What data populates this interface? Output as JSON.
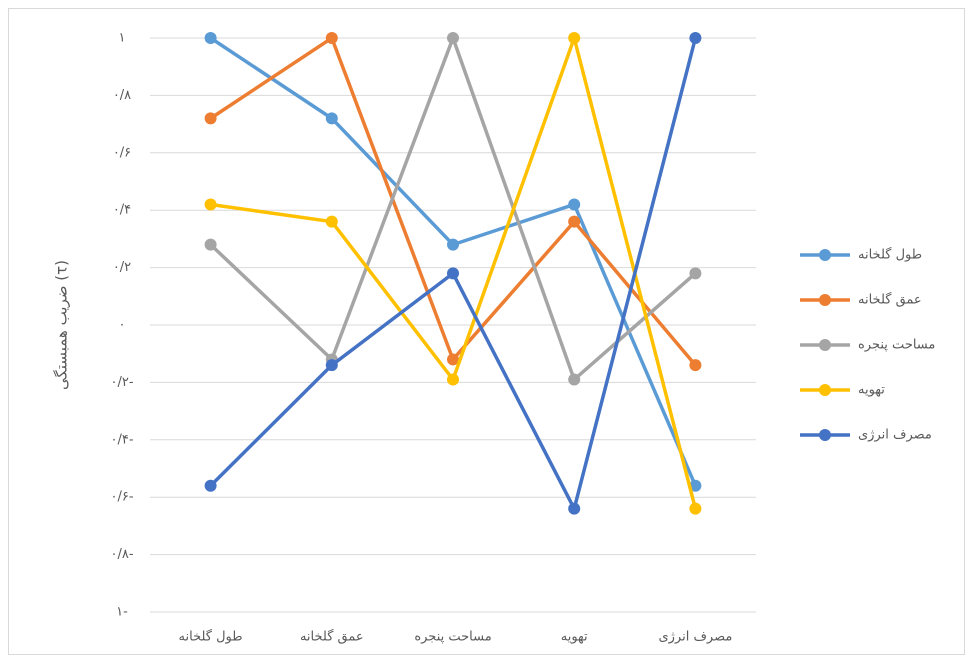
{
  "chart_data": {
    "type": "line",
    "y_label": "ضریب همبستگی (τ)",
    "categories": [
      "طول گلخانه",
      "عمق گلخانه",
      "مساحت پنجره",
      "تهویه",
      "مصرف انرژی"
    ],
    "series": [
      {
        "name": "طول گلخانه",
        "color": "#5b9bd5",
        "values": [
          1,
          0.72,
          0.28,
          0.42,
          -0.56
        ]
      },
      {
        "name": "عمق گلخانه",
        "color": "#ed7d31",
        "values": [
          0.72,
          1,
          -0.12,
          0.36,
          -0.14
        ]
      },
      {
        "name": "مساحت پنجره",
        "color": "#a5a5a5",
        "values": [
          0.28,
          -0.12,
          1,
          -0.19,
          0.18
        ]
      },
      {
        "name": "تهویه",
        "color": "#ffc000",
        "values": [
          0.42,
          0.36,
          -0.19,
          1,
          -0.64
        ]
      },
      {
        "name": "مصرف انرژی",
        "color": "#4472c4",
        "values": [
          -0.56,
          -0.14,
          0.18,
          -0.64,
          1
        ]
      }
    ],
    "ylim": [
      -1,
      1
    ],
    "yticks": [
      {
        "value": 1,
        "label": "۱"
      },
      {
        "value": 0.8,
        "label": "۰/۸"
      },
      {
        "value": 0.6,
        "label": "۰/۶"
      },
      {
        "value": 0.4,
        "label": "۰/۴"
      },
      {
        "value": 0.2,
        "label": "۰/۲"
      },
      {
        "value": 0,
        "label": "۰"
      },
      {
        "value": -0.2,
        "label": "۰/۲-"
      },
      {
        "value": -0.4,
        "label": "۰/۴-"
      },
      {
        "value": -0.6,
        "label": "۰/۶-"
      },
      {
        "value": -0.8,
        "label": "۰/۸-"
      },
      {
        "value": -1,
        "label": "۱-"
      }
    ],
    "grid": true,
    "legend": "right"
  }
}
